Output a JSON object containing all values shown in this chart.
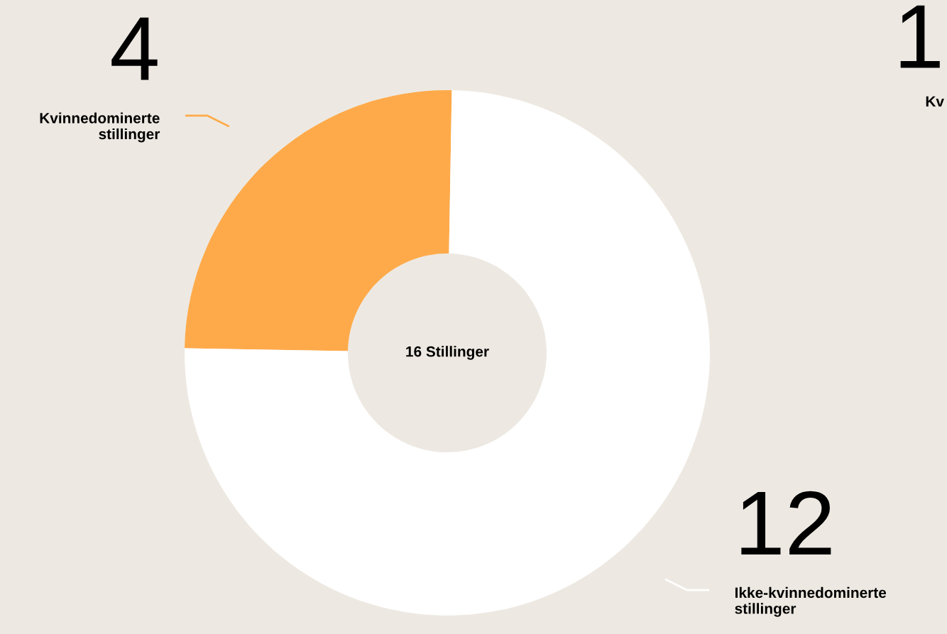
{
  "chart_data": {
    "type": "donut",
    "categories": [
      "Kvinnedominerte\nstillinger",
      "Ikke-kvinnedominerte\nstillinger"
    ],
    "values": [
      4,
      12
    ],
    "colors": [
      "#ffaa4a",
      "#ffffff"
    ],
    "data_labels": true,
    "annotations": [
      "16 Stillinger",
      "1",
      "Kv"
    ]
  }
}
